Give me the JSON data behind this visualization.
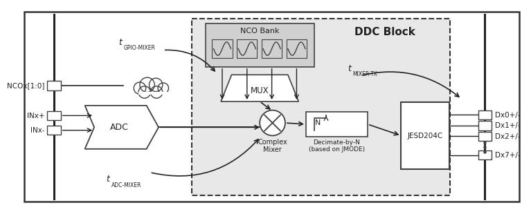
{
  "bg_color": "#ffffff",
  "ddc_fill": "#e8e8e8",
  "box_stroke": "#404040",
  "text_color": "#222222",
  "lc": "#222222",
  "labels": {
    "NCOx": "NCOx[1:0]",
    "INxp": "INx+",
    "INxm": "INx-",
    "ADC": "ADC",
    "NCO_Bank": "NCO Bank",
    "MUX": "MUX",
    "Complex_Mixer": "Complex\nMixer",
    "Decimate": "Decimate-by-N\n(based on JMODE)",
    "JESD": "JESD204C",
    "DDC": "DDC Block",
    "tGPIO_t": "t",
    "tGPIO_sub": "GPIO-MIXER",
    "tADC_t": "t",
    "tADC_sub": "ADC-MIXER",
    "tMIXER_t": "t",
    "tMIXER_sub": "MIXER-TX",
    "Dx0": "Dx0+/-",
    "Dx1": "Dx1+/-",
    "Dx2": "Dx2+/-",
    "Dx7": "Dx7+/-",
    "N_label": "N"
  }
}
